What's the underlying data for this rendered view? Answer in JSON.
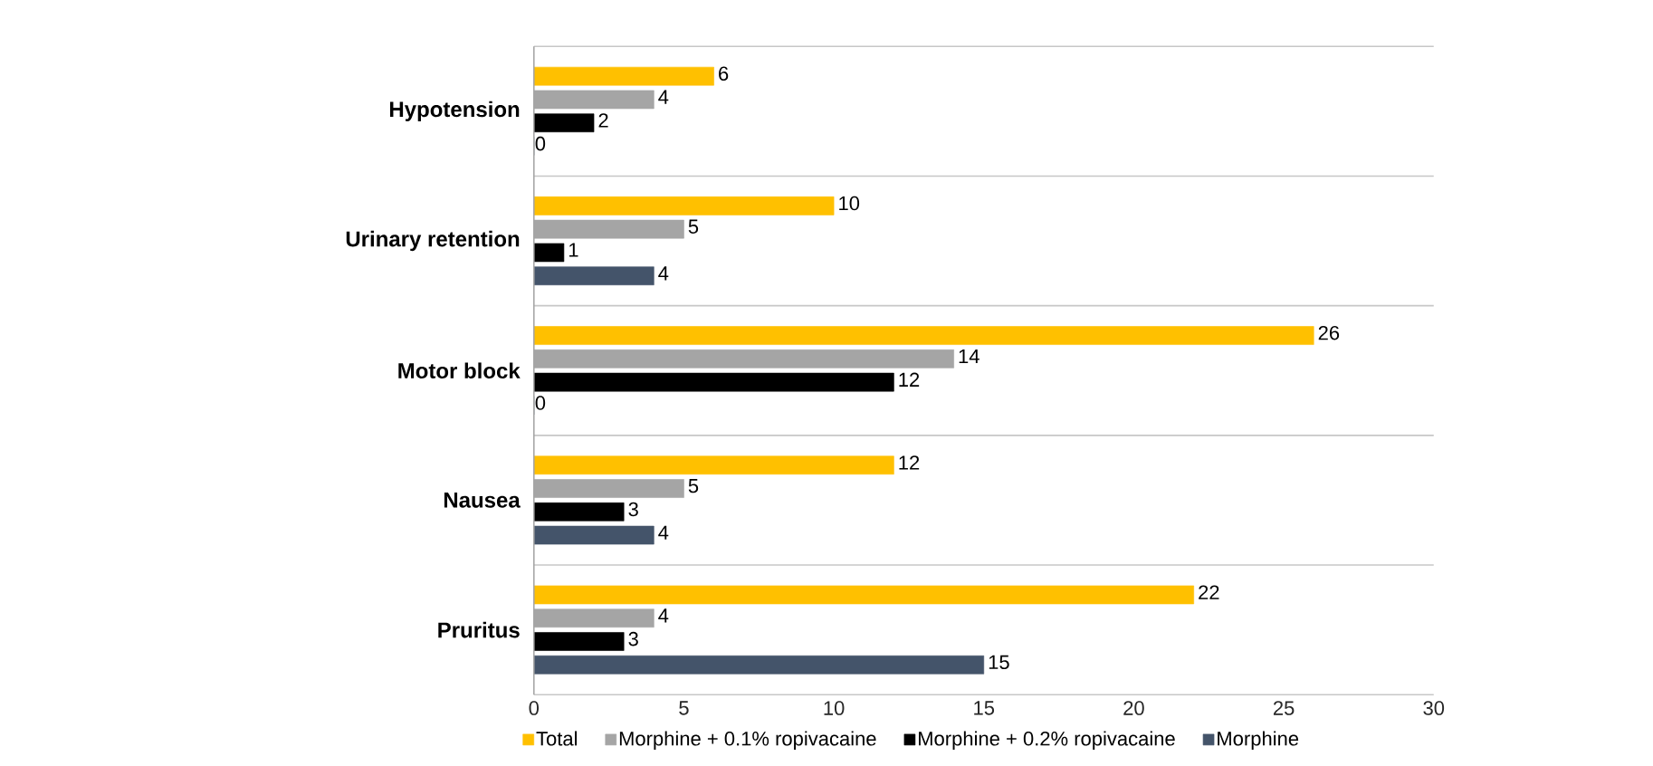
{
  "chart_data": {
    "type": "bar",
    "orientation": "horizontal",
    "categories": [
      "Hypotension",
      "Urinary retention",
      "Motor block",
      "Nausea",
      "Pruritus"
    ],
    "series": [
      {
        "name": "Total",
        "color": "#ffc000",
        "values": [
          6,
          10,
          26,
          12,
          22
        ]
      },
      {
        "name": "Morphine + 0.1% ropivacaine",
        "color": "#a5a5a5",
        "values": [
          4,
          5,
          14,
          5,
          4
        ]
      },
      {
        "name": "Morphine + 0.2% ropivacaine",
        "color": "#000000",
        "values": [
          2,
          1,
          12,
          3,
          3
        ]
      },
      {
        "name": "Morphine",
        "color": "#44546a",
        "values": [
          0,
          4,
          0,
          4,
          15
        ]
      }
    ],
    "xlim": [
      0,
      30
    ],
    "xticks": [
      0,
      5,
      10,
      15,
      20,
      25,
      30
    ],
    "data_labels": true,
    "grid": "y",
    "legend": "bottom"
  }
}
